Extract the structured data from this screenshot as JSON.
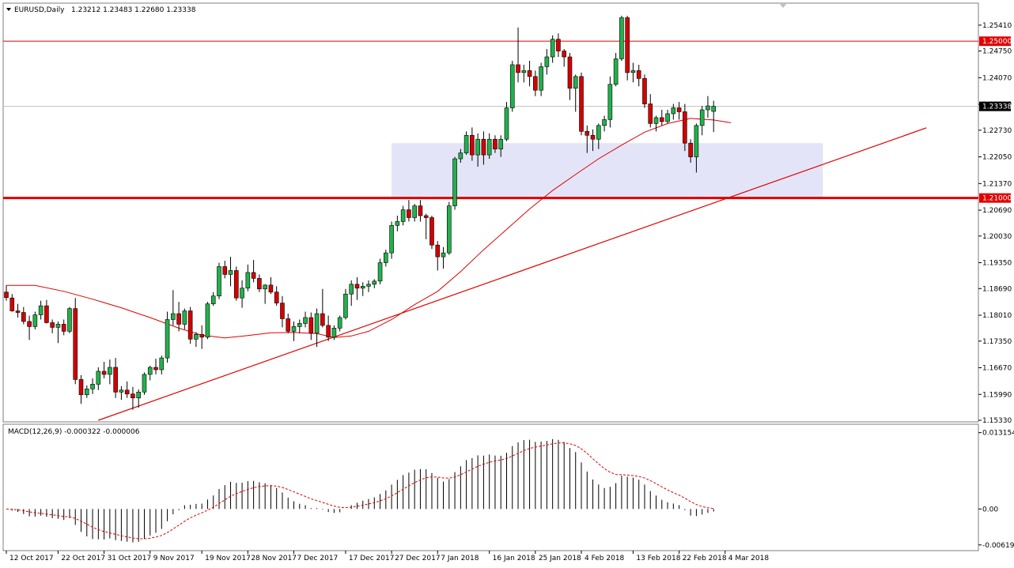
{
  "header": {
    "symbol": "EURUSD,Daily",
    "ohlc": "1.23212 1.23483 1.22680 1.23338",
    "macd_label": "MACD(12,26,9) -0.000322 -0.000006"
  },
  "colors": {
    "background": "#ffffff",
    "bull": "#22b14c",
    "bear": "#d40000",
    "wick": "#000000",
    "line_red": "#e00000",
    "zone": "#e3e4f7",
    "frame": "#7f7f7f"
  },
  "chart_data": [
    {
      "type": "candlestick",
      "title": "EURUSD,Daily",
      "ylim": [
        1.1533,
        1.2585
      ],
      "y_ticks": [
        "1.25410",
        "1.24750",
        "1.24070",
        "1.23390",
        "1.22730",
        "1.22050",
        "1.21370",
        "1.20690",
        "1.20030",
        "1.19350",
        "1.18690",
        "1.18010",
        "1.17350",
        "1.16670",
        "1.15990",
        "1.15330"
      ],
      "x_ticks": [
        "12 Oct 2017",
        "22 Oct 2017",
        "31 Oct 2017",
        "9 Nov 2017",
        "19 Nov 2017",
        "28 Nov 2017",
        "7 Dec 2017",
        "17 Dec 2017",
        "27 Dec 2017",
        "7 Jan 2018",
        "16 Jan 2018",
        "25 Jan 2018",
        "4 Feb 2018",
        "13 Feb 2018",
        "22 Feb 2018",
        "4 Mar 2018"
      ],
      "x_tick_index": [
        0,
        9,
        17,
        25,
        34,
        42,
        50,
        59,
        67,
        75,
        84,
        92,
        100,
        109,
        117,
        125
      ],
      "horizontal_levels": [
        {
          "price": 1.25,
          "label": "1.25000"
        },
        {
          "price": 1.21,
          "label": "1.21000"
        }
      ],
      "current_price": {
        "price": 1.23338,
        "label": "1.23338"
      },
      "support_zone": {
        "from_index": 67,
        "to_index": 142,
        "low": 1.21,
        "high": 1.224
      },
      "trendline": {
        "start_index": 16,
        "start_price": 1.1533,
        "end_index": 160,
        "end_price": 1.2279
      },
      "moving_average": [
        [
          0,
          1.1877
        ],
        [
          5,
          1.1877
        ],
        [
          10,
          1.1862
        ],
        [
          15,
          1.1842
        ],
        [
          20,
          1.182
        ],
        [
          25,
          1.1795
        ],
        [
          30,
          1.1768
        ],
        [
          34,
          1.175
        ],
        [
          38,
          1.1743
        ],
        [
          42,
          1.1749
        ],
        [
          46,
          1.1756
        ],
        [
          50,
          1.1757
        ],
        [
          54,
          1.1754
        ],
        [
          57,
          1.1744
        ],
        [
          60,
          1.1748
        ],
        [
          63,
          1.176
        ],
        [
          67,
          1.179
        ],
        [
          71,
          1.1828
        ],
        [
          75,
          1.1862
        ],
        [
          79,
          1.1912
        ],
        [
          83,
          1.1968
        ],
        [
          87,
          1.202
        ],
        [
          91,
          1.2072
        ],
        [
          95,
          1.2119
        ],
        [
          99,
          1.216
        ],
        [
          103,
          1.22
        ],
        [
          107,
          1.2235
        ],
        [
          111,
          1.2268
        ],
        [
          115,
          1.229
        ],
        [
          119,
          1.2303
        ],
        [
          123,
          1.2299
        ],
        [
          126,
          1.2292
        ]
      ],
      "candles": [
        [
          1.186,
          1.1877,
          1.1838,
          1.1846
        ],
        [
          1.1845,
          1.1855,
          1.181,
          1.1812
        ],
        [
          1.1812,
          1.183,
          1.1795,
          1.1808
        ],
        [
          1.1808,
          1.1822,
          1.1778,
          1.1785
        ],
        [
          1.1785,
          1.18,
          1.1738,
          1.1772
        ],
        [
          1.1772,
          1.181,
          1.1765,
          1.1802
        ],
        [
          1.1802,
          1.1838,
          1.179,
          1.1825
        ],
        [
          1.1825,
          1.184,
          1.178,
          1.1782
        ],
        [
          1.1782,
          1.179,
          1.1755,
          1.177
        ],
        [
          1.177,
          1.1785,
          1.173,
          1.1778
        ],
        [
          1.1778,
          1.179,
          1.175,
          1.176
        ],
        [
          1.176,
          1.1822,
          1.1755,
          1.1818
        ],
        [
          1.1818,
          1.1845,
          1.1625,
          1.1637
        ],
        [
          1.1637,
          1.1648,
          1.1575,
          1.1598
        ],
        [
          1.1598,
          1.1622,
          1.159,
          1.1613
        ],
        [
          1.1613,
          1.164,
          1.16,
          1.1625
        ],
        [
          1.1625,
          1.1668,
          1.161,
          1.1658
        ],
        [
          1.1658,
          1.1682,
          1.164,
          1.165
        ],
        [
          1.165,
          1.1688,
          1.1625,
          1.1668
        ],
        [
          1.1668,
          1.1692,
          1.159,
          1.1605
        ],
        [
          1.1605,
          1.162,
          1.1585,
          1.161
        ],
        [
          1.161,
          1.1632,
          1.159,
          1.16
        ],
        [
          1.16,
          1.1618,
          1.156,
          1.159
        ],
        [
          1.159,
          1.1612,
          1.1565,
          1.1605
        ],
        [
          1.1605,
          1.1655,
          1.1598,
          1.165
        ],
        [
          1.165,
          1.1672,
          1.1635,
          1.1668
        ],
        [
          1.1668,
          1.169,
          1.165,
          1.1662
        ],
        [
          1.1662,
          1.1698,
          1.165,
          1.1692
        ],
        [
          1.1692,
          1.181,
          1.168,
          1.179
        ],
        [
          1.179,
          1.1865,
          1.1775,
          1.1805
        ],
        [
          1.1805,
          1.1835,
          1.176,
          1.1778
        ],
        [
          1.1778,
          1.1818,
          1.1765,
          1.1812
        ],
        [
          1.1812,
          1.1822,
          1.1728,
          1.174
        ],
        [
          1.174,
          1.1758,
          1.172,
          1.1752
        ],
        [
          1.1752,
          1.1775,
          1.1715,
          1.1745
        ],
        [
          1.1745,
          1.1835,
          1.174,
          1.183
        ],
        [
          1.183,
          1.186,
          1.1825,
          1.185
        ],
        [
          1.185,
          1.1935,
          1.1842,
          1.1925
        ],
        [
          1.1925,
          1.194,
          1.1895,
          1.1905
        ],
        [
          1.1905,
          1.195,
          1.1875,
          1.1915
        ],
        [
          1.1915,
          1.1925,
          1.1838,
          1.1845
        ],
        [
          1.1845,
          1.189,
          1.182,
          1.187
        ],
        [
          1.187,
          1.193,
          1.1862,
          1.191
        ],
        [
          1.191,
          1.1942,
          1.1885,
          1.1895
        ],
        [
          1.1895,
          1.1905,
          1.186,
          1.1868
        ],
        [
          1.1868,
          1.188,
          1.183,
          1.1878
        ],
        [
          1.1878,
          1.1898,
          1.1855,
          1.186
        ],
        [
          1.186,
          1.1875,
          1.1825,
          1.1832
        ],
        [
          1.1832,
          1.185,
          1.177,
          1.1792
        ],
        [
          1.1792,
          1.1805,
          1.1755,
          1.176
        ],
        [
          1.176,
          1.1785,
          1.1735,
          1.1772
        ],
        [
          1.1772,
          1.179,
          1.1755,
          1.178
        ],
        [
          1.178,
          1.181,
          1.177,
          1.1795
        ],
        [
          1.1795,
          1.1808,
          1.1738,
          1.1755
        ],
        [
          1.1755,
          1.1818,
          1.172,
          1.1805
        ],
        [
          1.1805,
          1.1868,
          1.177,
          1.1775
        ],
        [
          1.1775,
          1.18,
          1.1735,
          1.1745
        ],
        [
          1.1745,
          1.1775,
          1.1738,
          1.1768
        ],
        [
          1.1768,
          1.18,
          1.176,
          1.1795
        ],
        [
          1.1795,
          1.1868,
          1.179,
          1.1855
        ],
        [
          1.1855,
          1.189,
          1.1825,
          1.188
        ],
        [
          1.188,
          1.1898,
          1.184,
          1.187
        ],
        [
          1.187,
          1.1885,
          1.185,
          1.1875
        ],
        [
          1.1875,
          1.189,
          1.186,
          1.188
        ],
        [
          1.188,
          1.1893,
          1.187,
          1.1888
        ],
        [
          1.1888,
          1.1945,
          1.188,
          1.1935
        ],
        [
          1.1935,
          1.1968,
          1.1925,
          1.196
        ],
        [
          1.196,
          1.204,
          1.1945,
          1.203
        ],
        [
          1.203,
          1.2055,
          1.2015,
          1.204
        ],
        [
          1.204,
          1.208,
          1.203,
          1.207
        ],
        [
          1.207,
          1.2095,
          1.204,
          1.205
        ],
        [
          1.205,
          1.2085,
          1.204,
          1.208
        ],
        [
          1.208,
          1.2095,
          1.204,
          1.2055
        ],
        [
          1.2055,
          1.206,
          1.1995,
          1.205
        ],
        [
          1.205,
          1.2055,
          1.197,
          1.198
        ],
        [
          1.198,
          1.199,
          1.1915,
          1.195
        ],
        [
          1.195,
          1.1975,
          1.192,
          1.196
        ],
        [
          1.196,
          1.209,
          1.1955,
          1.208
        ],
        [
          1.208,
          1.2205,
          1.207,
          1.22
        ],
        [
          1.22,
          1.2225,
          1.219,
          1.2215
        ],
        [
          1.2215,
          1.227,
          1.221,
          1.226
        ],
        [
          1.226,
          1.228,
          1.2195,
          1.221
        ],
        [
          1.221,
          1.2265,
          1.218,
          1.225
        ],
        [
          1.225,
          1.227,
          1.2185,
          1.221
        ],
        [
          1.221,
          1.2265,
          1.22,
          1.225
        ],
        [
          1.225,
          1.226,
          1.2215,
          1.2225
        ],
        [
          1.2225,
          1.226,
          1.2205,
          1.225
        ],
        [
          1.225,
          1.2345,
          1.2245,
          1.233
        ],
        [
          1.233,
          1.245,
          1.232,
          1.244
        ],
        [
          1.244,
          1.2535,
          1.2395,
          1.242
        ],
        [
          1.242,
          1.244,
          1.2395,
          1.2425
        ],
        [
          1.2425,
          1.245,
          1.2385,
          1.241
        ],
        [
          1.241,
          1.2425,
          1.236,
          1.2375
        ],
        [
          1.2375,
          1.2445,
          1.236,
          1.2435
        ],
        [
          1.2435,
          1.248,
          1.2415,
          1.246
        ],
        [
          1.246,
          1.2515,
          1.2445,
          1.2505
        ],
        [
          1.2505,
          1.252,
          1.246,
          1.2475
        ],
        [
          1.2475,
          1.248,
          1.2435,
          1.246
        ],
        [
          1.246,
          1.247,
          1.235,
          1.238
        ],
        [
          1.238,
          1.2415,
          1.232,
          1.241
        ],
        [
          1.241,
          1.242,
          1.226,
          1.227
        ],
        [
          1.227,
          1.2285,
          1.2215,
          1.226
        ],
        [
          1.226,
          1.2275,
          1.222,
          1.225
        ],
        [
          1.225,
          1.229,
          1.2225,
          1.2285
        ],
        [
          1.2285,
          1.231,
          1.227,
          1.23
        ],
        [
          1.23,
          1.241,
          1.228,
          1.239
        ],
        [
          1.239,
          1.247,
          1.2385,
          1.2455
        ],
        [
          1.2455,
          1.2565,
          1.245,
          1.256
        ],
        [
          1.256,
          1.2565,
          1.24,
          1.242
        ],
        [
          1.242,
          1.2445,
          1.2395,
          1.2425
        ],
        [
          1.2425,
          1.244,
          1.2385,
          1.2405
        ],
        [
          1.2405,
          1.2415,
          1.233,
          1.234
        ],
        [
          1.234,
          1.2365,
          1.228,
          1.229
        ],
        [
          1.229,
          1.231,
          1.227,
          1.2305
        ],
        [
          1.2305,
          1.2325,
          1.2285,
          1.2295
        ],
        [
          1.2295,
          1.2325,
          1.229,
          1.2315
        ],
        [
          1.2315,
          1.234,
          1.23,
          1.233
        ],
        [
          1.233,
          1.2345,
          1.23,
          1.232
        ],
        [
          1.232,
          1.234,
          1.222,
          1.224
        ],
        [
          1.224,
          1.225,
          1.219,
          1.2205
        ],
        [
          1.2205,
          1.229,
          1.2165,
          1.2285
        ],
        [
          1.2285,
          1.2335,
          1.226,
          1.2325
        ],
        [
          1.2325,
          1.236,
          1.2305,
          1.2335
        ],
        [
          1.2321,
          1.2348,
          1.2268,
          1.2334
        ]
      ],
      "candle_count_note": "",
      "macd_panel": {
        "ylim": [
          -0.0069,
          0.0142
        ],
        "y_ticks": [
          "0.013154",
          "0.00",
          "-0.00619"
        ]
      }
    }
  ]
}
